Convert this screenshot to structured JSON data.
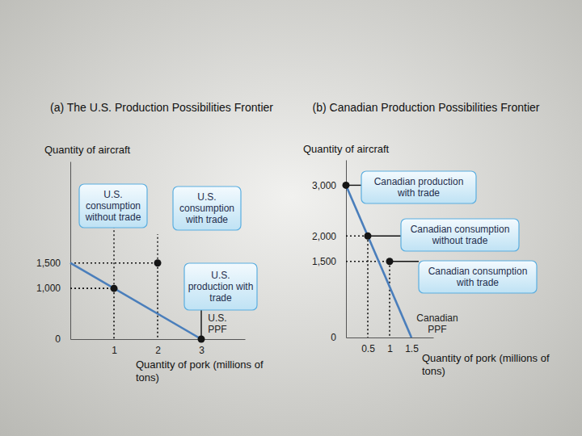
{
  "chart_data": [
    {
      "type": "line",
      "title": "(a) The U.S. Production Possibilities Frontier",
      "x_label": "Quantity of pork (millions of tons)",
      "y_label": "Quantity of aircraft",
      "xlim": [
        0,
        4
      ],
      "xticks": [
        1,
        2,
        3
      ],
      "ylim": [
        0,
        3500
      ],
      "yticks": [
        0,
        {
          "value": 1000,
          "label": "1,000"
        },
        {
          "value": 1500,
          "label": "1,500"
        }
      ],
      "series": [
        {
          "name": "U.S. PPF",
          "color": "#4a7ebb",
          "x": [
            0,
            3
          ],
          "values": [
            1500,
            0
          ]
        }
      ],
      "annotations": [
        {
          "text": "U.S. consumption without trade",
          "x": 1,
          "y": 1000
        },
        {
          "text": "U.S. consumption with trade",
          "x": 2,
          "y": 1500
        },
        {
          "text": "U.S. production with trade",
          "x": 3,
          "y": 0
        }
      ]
    },
    {
      "type": "line",
      "title": "(b) Canadian Production Possibilities Frontier",
      "x_label": "Quantity of pork (millions of tons)",
      "y_label": "Quantity of aircraft",
      "xlim": [
        0,
        2
      ],
      "xticks": [
        0.5,
        1,
        1.5
      ],
      "ylim": [
        0,
        3500
      ],
      "yticks": [
        0,
        {
          "value": 1500,
          "label": "1,500"
        },
        {
          "value": 2000,
          "label": "2,000"
        },
        {
          "value": 3000,
          "label": "3,000"
        }
      ],
      "series": [
        {
          "name": "Canadian PPF",
          "color": "#4a7ebb",
          "x": [
            0,
            1.5
          ],
          "values": [
            3000,
            0
          ]
        }
      ],
      "annotations": [
        {
          "text": "Canadian production with trade",
          "x": 0,
          "y": 3000
        },
        {
          "text": "Canadian consumption without trade",
          "x": 0.5,
          "y": 2000
        },
        {
          "text": "Canadian consumption with trade",
          "x": 1,
          "y": 1500
        }
      ]
    }
  ]
}
